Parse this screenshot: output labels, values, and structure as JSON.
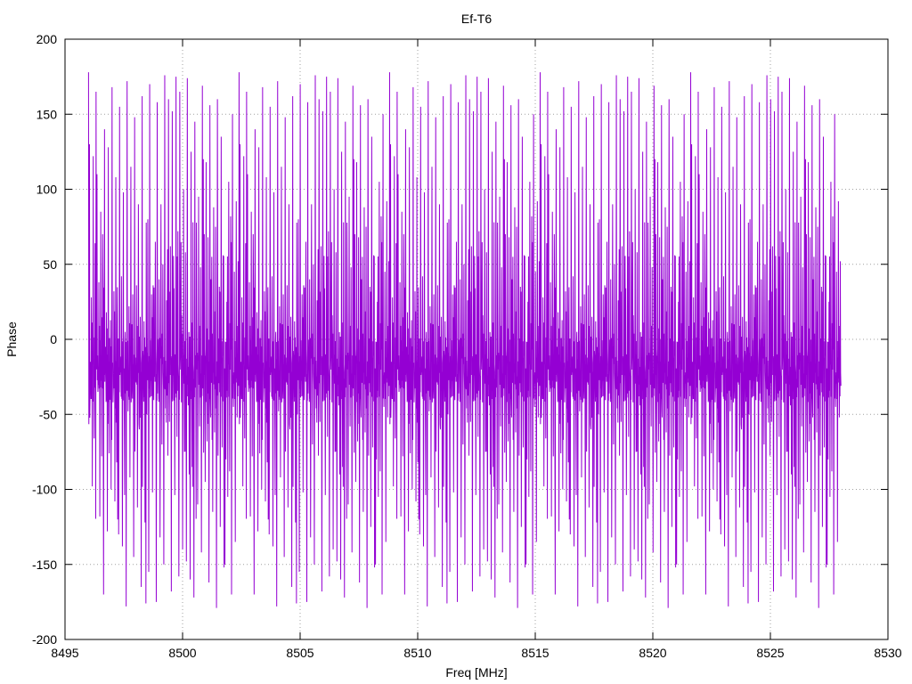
{
  "chart_data": {
    "type": "line",
    "title": "Ef-T6",
    "xlabel": "Freq [MHz]",
    "ylabel": "Phase",
    "xlim": [
      8495,
      8530
    ],
    "ylim": [
      -200,
      200
    ],
    "xticks": [
      8495,
      8500,
      8505,
      8510,
      8515,
      8520,
      8525,
      8530
    ],
    "yticks": [
      -200,
      -150,
      -100,
      -50,
      0,
      50,
      100,
      150,
      200
    ],
    "grid": true,
    "legend": "none",
    "series_color": "#9400d3",
    "series": [
      {
        "x_range": [
          8496,
          8528
        ],
        "values": [
          178,
          -176,
          120,
          -40,
          60,
          -150,
          10,
          -90,
          165,
          -30,
          40,
          -120,
          -10,
          150,
          -60,
          20,
          -170,
          90,
          -20,
          5,
          -140,
          130,
          -50,
          70,
          -100,
          160,
          -80,
          30,
          -160,
          110,
          -25,
          55,
          -130,
          175,
          -45,
          15,
          -110,
          140,
          -70,
          35,
          -178,
          100,
          -15,
          80,
          -95,
          168,
          -55,
          25,
          -145,
          125,
          -35,
          65,
          -115,
          155,
          -65,
          45,
          -165,
          95,
          -5,
          50,
          -125,
          172,
          -75,
          28,
          -155,
          118,
          -42,
          62,
          -105,
          148,
          -85,
          38,
          -175,
          88,
          -22,
          72,
          -135,
          162,
          -58,
          18,
          -150,
          135,
          -48,
          58,
          -98,
          170,
          -68,
          32,
          -168,
          105,
          -28,
          78,
          -118,
          158,
          -62,
          42,
          -158,
          92,
          -12,
          48,
          -128,
          176,
          -72,
          22,
          -148,
          122,
          -38,
          68,
          -108,
          152,
          -88,
          36,
          -172,
          85,
          -18,
          75,
          -138,
          165,
          -52,
          12,
          -142,
          128,
          -46,
          56,
          -92,
          174,
          -66,
          30,
          -162,
          108,
          -24,
          82,
          -112,
          145,
          -78,
          40,
          -180,
          98,
          -8,
          52,
          -122,
          169,
          -76,
          26,
          -152,
          115,
          -44,
          64,
          -102,
          156,
          -82,
          34,
          -170,
          90,
          -16,
          70,
          -132,
          160,
          -56,
          16
        ]
      }
    ]
  }
}
